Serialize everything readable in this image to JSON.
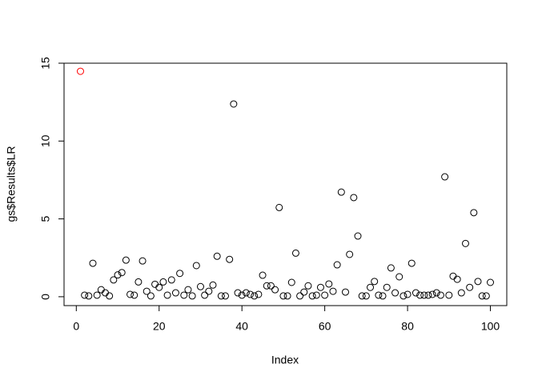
{
  "chart_data": {
    "type": "scatter",
    "x_label": "Index",
    "y_label": "gs$Results$LR",
    "xlim": [
      -2.96,
      103.96
    ],
    "ylim": [
      -0.57,
      15.0
    ],
    "xticks": [
      0,
      20,
      40,
      60,
      80,
      100
    ],
    "yticks": [
      0,
      5,
      10,
      15
    ],
    "series": [
      {
        "color": "#ff0000",
        "x": [
          1
        ],
        "values": [
          14.48
        ]
      },
      {
        "color": "#000000",
        "x": [
          2,
          3,
          4,
          5,
          6,
          7,
          8,
          9,
          10,
          11,
          12,
          13,
          14,
          15,
          16,
          17,
          18,
          19,
          20,
          21,
          22,
          23,
          24,
          25,
          26,
          27,
          28,
          29,
          30,
          31,
          32,
          33,
          34,
          35,
          36,
          37,
          38,
          39,
          40,
          41,
          42,
          43,
          44,
          45,
          46,
          47,
          48,
          49,
          50,
          51,
          52,
          53,
          54,
          55,
          56,
          57,
          58,
          59,
          60,
          61,
          62,
          63,
          64,
          65,
          66,
          67,
          68,
          69,
          70,
          71,
          72,
          73,
          74,
          75,
          76,
          77,
          78,
          79,
          80,
          81,
          82,
          83,
          84,
          85,
          86,
          87,
          88,
          89,
          90,
          91,
          92,
          93,
          94,
          95,
          96,
          97,
          98,
          99,
          100
        ],
        "values": [
          0.1,
          0.05,
          2.15,
          0.1,
          0.45,
          0.25,
          0.05,
          1.08,
          1.4,
          1.55,
          2.35,
          0.15,
          0.1,
          0.95,
          2.3,
          0.35,
          0.05,
          0.8,
          0.6,
          0.95,
          0.1,
          1.08,
          0.25,
          1.5,
          0.1,
          0.45,
          0.05,
          2.0,
          0.65,
          0.1,
          0.35,
          0.75,
          2.6,
          0.05,
          0.05,
          2.4,
          12.38,
          0.25,
          0.1,
          0.25,
          0.15,
          0.05,
          0.15,
          1.38,
          0.7,
          0.7,
          0.45,
          5.73,
          0.05,
          0.05,
          0.92,
          2.8,
          0.05,
          0.3,
          0.7,
          0.05,
          0.1,
          0.6,
          0.1,
          0.82,
          0.35,
          2.05,
          6.72,
          0.3,
          2.72,
          6.37,
          3.9,
          0.05,
          0.05,
          0.6,
          0.98,
          0.1,
          0.05,
          0.6,
          1.85,
          0.25,
          1.28,
          0.05,
          0.15,
          2.15,
          0.25,
          0.1,
          0.1,
          0.1,
          0.15,
          0.25,
          0.1,
          7.7,
          0.1,
          1.32,
          1.12,
          0.25,
          3.42,
          0.6,
          5.4,
          0.98,
          0.05,
          0.05,
          0.92
        ]
      }
    ]
  }
}
